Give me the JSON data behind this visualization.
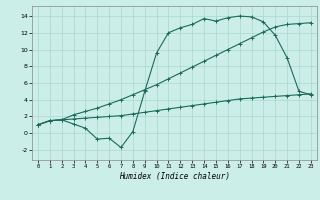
{
  "xlabel": "Humidex (Indice chaleur)",
  "bg_color": "#cceee8",
  "grid_color": "#aad6cc",
  "line_color": "#1a6b5a",
  "xlim": [
    -0.5,
    23.5
  ],
  "ylim": [
    -3.2,
    15.2
  ],
  "xticks": [
    0,
    1,
    2,
    3,
    4,
    5,
    6,
    7,
    8,
    9,
    10,
    11,
    12,
    13,
    14,
    15,
    16,
    17,
    18,
    19,
    20,
    21,
    22,
    23
  ],
  "yticks": [
    -2,
    0,
    2,
    4,
    6,
    8,
    10,
    12,
    14
  ],
  "line1_x": [
    0,
    1,
    2,
    3,
    4,
    5,
    6,
    7,
    8,
    9,
    10,
    11,
    12,
    13,
    14,
    15,
    16,
    17,
    18,
    19,
    20,
    21,
    22,
    23
  ],
  "line1_y": [
    1.0,
    1.5,
    1.6,
    1.7,
    1.8,
    1.9,
    2.0,
    2.1,
    2.3,
    2.5,
    2.7,
    2.9,
    3.1,
    3.3,
    3.5,
    3.7,
    3.9,
    4.1,
    4.2,
    4.3,
    4.4,
    4.5,
    4.6,
    4.7
  ],
  "line2_x": [
    0,
    1,
    2,
    3,
    4,
    5,
    6,
    7,
    8,
    9,
    10,
    11,
    12,
    13,
    14,
    15,
    16,
    17,
    18,
    19,
    20,
    21,
    22,
    23
  ],
  "line2_y": [
    1.0,
    1.5,
    1.6,
    2.2,
    2.6,
    3.0,
    3.5,
    4.0,
    4.6,
    5.2,
    5.8,
    6.5,
    7.2,
    7.9,
    8.6,
    9.3,
    10.0,
    10.7,
    11.4,
    12.1,
    12.7,
    13.0,
    13.1,
    13.2
  ],
  "line3_x": [
    0,
    1,
    2,
    3,
    4,
    5,
    6,
    7,
    8,
    9,
    10,
    11,
    12,
    13,
    14,
    15,
    16,
    17,
    18,
    19,
    20,
    21,
    22,
    23
  ],
  "line3_y": [
    1.0,
    1.5,
    1.6,
    1.1,
    0.6,
    -0.7,
    -0.6,
    -1.7,
    0.2,
    5.0,
    9.6,
    12.0,
    12.6,
    13.0,
    13.7,
    13.4,
    13.8,
    14.0,
    13.9,
    13.3,
    11.7,
    9.0,
    5.0,
    4.6
  ]
}
